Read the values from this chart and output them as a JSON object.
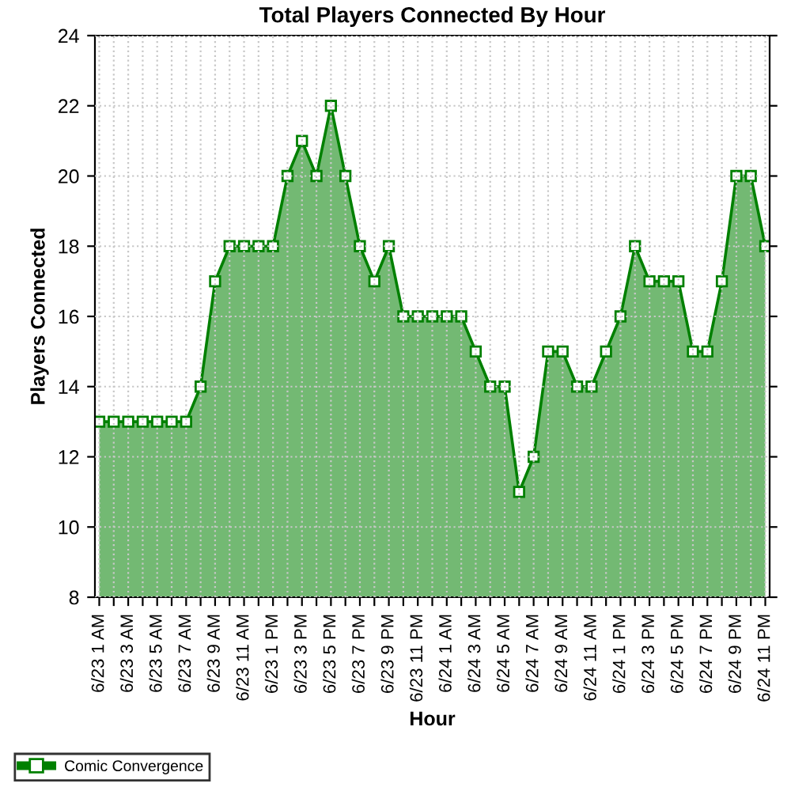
{
  "chart_data": {
    "type": "area",
    "title": "Total Players Connected By Hour",
    "xlabel": "Hour",
    "ylabel": "Players Connected",
    "categories": [
      "6/23 1 AM",
      null,
      "6/23 3 AM",
      null,
      "6/23 5 AM",
      null,
      "6/23 7 AM",
      null,
      "6/23 9 AM",
      null,
      "6/23 11 AM",
      null,
      "6/23 1 PM",
      null,
      "6/23 3 PM",
      null,
      "6/23 5 PM",
      null,
      "6/23 7 PM",
      null,
      "6/23 9 PM",
      null,
      "6/23 11 PM",
      null,
      "6/24 1 AM",
      null,
      "6/24 3 AM",
      null,
      "6/24 5 AM",
      null,
      "6/24 7 AM",
      null,
      "6/24 9 AM",
      null,
      "6/24 11 AM",
      null,
      "6/24 1 PM",
      null,
      "6/24 3 PM",
      null,
      "6/24 5 PM",
      null,
      "6/24 7 PM",
      null,
      "6/24 9 PM",
      null,
      "6/24 11 PM"
    ],
    "series": [
      {
        "name": "Comic Convergence",
        "color": "#008000",
        "values": [
          13,
          13,
          13,
          13,
          13,
          13,
          13,
          14,
          17,
          18,
          18,
          18,
          18,
          20,
          21,
          20,
          22,
          20,
          18,
          17,
          18,
          16,
          16,
          16,
          16,
          16,
          15,
          14,
          14,
          11,
          12,
          15,
          15,
          14,
          14,
          15,
          16,
          18,
          17,
          17,
          17,
          15,
          15,
          17,
          20,
          20,
          18
        ]
      }
    ],
    "ylim": [
      8,
      24
    ],
    "yticks": [
      8,
      10,
      12,
      14,
      16,
      18,
      20,
      22,
      24
    ],
    "grid": true,
    "legend": "bottom left",
    "marker": "square",
    "line_style": "solid"
  }
}
